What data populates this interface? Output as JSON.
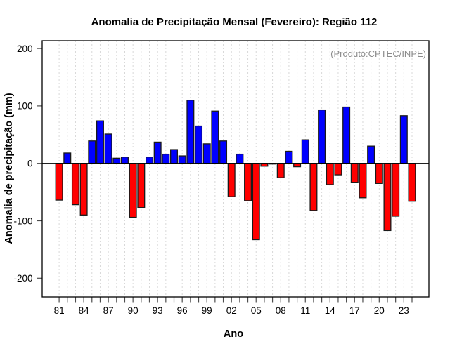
{
  "chart_data": {
    "type": "bar",
    "title": "Anomalia de Precipitação Mensal (Fevereiro): Região 112",
    "xlabel": "Ano",
    "ylabel": "Anomalia de precipitação (mm)",
    "annotation": "(Produto:CPTEC/INPE)",
    "categories": [
      "81",
      "82",
      "83",
      "84",
      "85",
      "86",
      "87",
      "88",
      "89",
      "90",
      "91",
      "92",
      "93",
      "94",
      "95",
      "96",
      "97",
      "98",
      "99",
      "00",
      "01",
      "02",
      "03",
      "04",
      "05",
      "06",
      "07",
      "08",
      "09",
      "10",
      "11",
      "12",
      "13",
      "14",
      "15",
      "16",
      "17",
      "18",
      "19",
      "20",
      "21",
      "22",
      "23",
      "24"
    ],
    "values": [
      -64,
      18,
      -72,
      -90,
      39,
      74,
      51,
      9,
      11,
      -94,
      -77,
      11,
      37,
      16,
      24,
      13,
      110,
      65,
      34,
      91,
      39,
      -58,
      16,
      -65,
      -133,
      -5,
      -1,
      -25,
      21,
      -6,
      41,
      -82,
      93,
      -37,
      -20,
      98,
      -33,
      -60,
      30,
      -35,
      -117,
      -92,
      83,
      -66
    ],
    "labeled_ticks": [
      "81",
      "84",
      "87",
      "90",
      "93",
      "96",
      "99",
      "02",
      "05",
      "08",
      "11",
      "14",
      "17",
      "20",
      "23"
    ],
    "yticks": [
      200,
      100,
      0,
      -100,
      -200
    ],
    "ylim": [
      -233,
      214
    ],
    "grid": "vertical-dashed",
    "legend": "none",
    "colors": {
      "positive_bar": "#0000FF",
      "negative_bar": "#FF0000",
      "bar_border": "#1A1A1A",
      "gridline": "#D8D8D8",
      "axis_line": "#000000",
      "tick_mark": "#4D4D4D",
      "annotation_text": "#8C8C8C",
      "background": "#FFFFFF"
    }
  }
}
